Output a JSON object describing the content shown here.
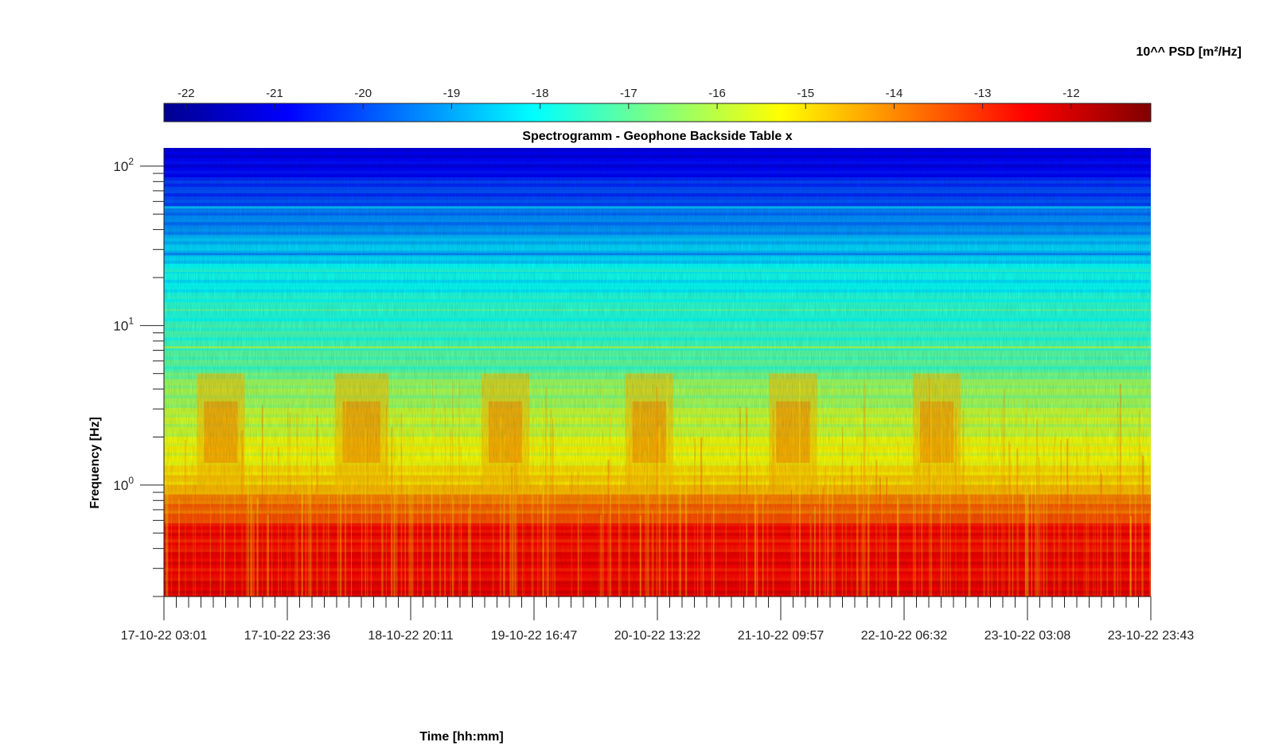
{
  "chart_data": {
    "type": "heatmap",
    "title": "Spectrogramm - Geophone Backside Table x",
    "xlabel": "Time [hh:mm]",
    "ylabel": "Frequency [Hz]",
    "y_scale": "log",
    "ylim": [
      0.2,
      130
    ],
    "y_ticks": [
      {
        "mantissa": "10",
        "exponent": "0",
        "value": 1
      },
      {
        "mantissa": "10",
        "exponent": "1",
        "value": 10
      },
      {
        "mantissa": "10",
        "exponent": "2",
        "value": 100
      }
    ],
    "x_ticks": [
      "17-10-22 03:01",
      "17-10-22 23:36",
      "18-10-22 20:11",
      "19-10-22 16:47",
      "20-10-22 13:22",
      "21-10-22 09:57",
      "22-10-22 06:32",
      "23-10-22 03:08",
      "23-10-22 23:43"
    ],
    "colorbar": {
      "label": "10^^ PSD [m²/Hz]",
      "range": [
        -22.25,
        -11.1
      ],
      "ticks": [
        "-22",
        "-21",
        "-20",
        "-19",
        "-18",
        "-17",
        "-16",
        "-15",
        "-14",
        "-13",
        "-12"
      ],
      "colormap": "jet"
    },
    "activity_bands": [
      {
        "start": "17-10-22 08:30",
        "end": "17-10-22 16:30",
        "band_hz": [
          1.0,
          5.0
        ]
      },
      {
        "start": "18-10-22 07:30",
        "end": "18-10-22 16:30",
        "band_hz": [
          1.0,
          5.0
        ]
      },
      {
        "start": "19-10-22 08:00",
        "end": "19-10-22 16:00",
        "band_hz": [
          1.0,
          5.0
        ]
      },
      {
        "start": "20-10-22 08:00",
        "end": "20-10-22 16:00",
        "band_hz": [
          1.0,
          5.0
        ]
      },
      {
        "start": "21-10-22 08:00",
        "end": "21-10-22 16:00",
        "band_hz": [
          1.0,
          5.0
        ]
      },
      {
        "start": "22-10-22 08:00",
        "end": "22-10-22 16:00",
        "band_hz": [
          1.0,
          5.0
        ]
      }
    ]
  }
}
